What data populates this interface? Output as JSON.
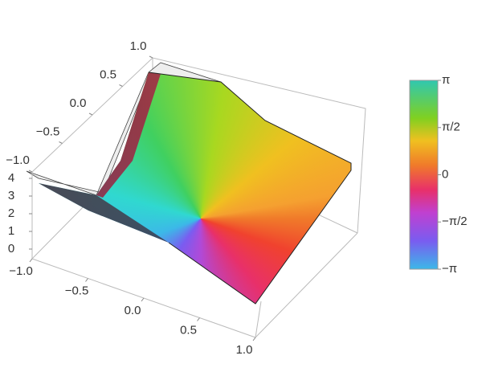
{
  "chart_data": {
    "type": "complex-plot-3d",
    "xlim": [
      -1,
      1
    ],
    "xticks": [
      {
        "value": -1,
        "label": "−1.0"
      },
      {
        "value": -0.5,
        "label": "−0.5"
      },
      {
        "value": 0,
        "label": "0.0"
      },
      0.5,
      {
        "value": 1,
        "label": "1.0"
      }
    ],
    "ylim": [
      -1,
      1
    ],
    "yticks": [
      {
        "value": -1,
        "label": "−1.0"
      },
      {
        "value": -0.5,
        "label": "−0.5"
      },
      {
        "value": 0,
        "label": "0.0"
      },
      0.5,
      {
        "value": 1,
        "label": "1.0"
      }
    ],
    "zlim": [
      0,
      4
    ],
    "zticks": [
      0,
      1,
      2,
      3,
      4
    ],
    "colorbar": {
      "lim": [
        -3.14159,
        3.14159
      ],
      "ticks": [
        {
          "value": 3.14159,
          "label": "π"
        },
        {
          "value": 1.5708,
          "label": "π/2"
        },
        0,
        {
          "value": -1.5708,
          "label": "−π/2"
        },
        {
          "value": -3.14159,
          "label": "−π"
        }
      ]
    }
  }
}
